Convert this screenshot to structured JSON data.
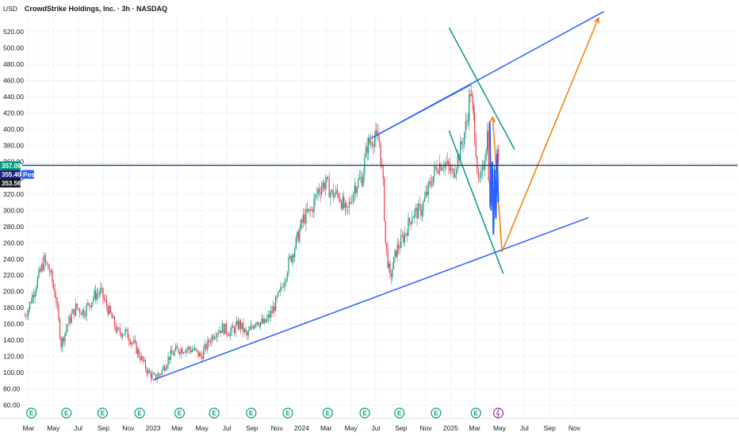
{
  "chart_data": {
    "type": "candlestick",
    "currency": "USD",
    "title": "CrowdStrike Holdings, Inc. · 3h · NASDAQ",
    "ylim": [
      55,
      550
    ],
    "y_ticks": [
      "520.00",
      "500.00",
      "480.00",
      "460.00",
      "440.00",
      "420.00",
      "400.00",
      "380.00",
      "360.00",
      "340.00",
      "320.00",
      "300.00",
      "280.00",
      "260.00",
      "240.00",
      "220.00",
      "200.00",
      "180.00",
      "160.00",
      "140.00",
      "120.00",
      "100.00",
      "80.00",
      "60.00"
    ],
    "x_ticks": [
      "Mar",
      "May",
      "Jul",
      "Sep",
      "Nov",
      "2023",
      "Mar",
      "May",
      "Jul",
      "Sep",
      "Nov",
      "2024",
      "Mar",
      "May",
      "Jul",
      "Sep",
      "Nov",
      "2025",
      "Mar",
      "May",
      "Jul",
      "Sep",
      "Nov"
    ],
    "price_badges": [
      {
        "label": "357.09",
        "value": 357.09,
        "color": "#089981"
      },
      {
        "label": "355.46",
        "value": 355.46,
        "color": "#1a237e"
      },
      {
        "label": "Post",
        "value": 355.46,
        "color": "#2962ff"
      },
      {
        "label": "353.56",
        "value": 353.56,
        "color": "#131722"
      }
    ],
    "price_path": [
      [
        "2022-02-20",
        170
      ],
      [
        "2022-03-01",
        180
      ],
      [
        "2022-03-20",
        210
      ],
      [
        "2022-04-08",
        238
      ],
      [
        "2022-04-22",
        225
      ],
      [
        "2022-05-08",
        190
      ],
      [
        "2022-05-20",
        135
      ],
      [
        "2022-06-05",
        160
      ],
      [
        "2022-06-25",
        180
      ],
      [
        "2022-07-15",
        175
      ],
      [
        "2022-08-10",
        195
      ],
      [
        "2022-08-25",
        200
      ],
      [
        "2022-09-15",
        175
      ],
      [
        "2022-10-05",
        150
      ],
      [
        "2022-10-25",
        150
      ],
      [
        "2022-11-15",
        135
      ],
      [
        "2022-11-30",
        120
      ],
      [
        "2022-12-20",
        100
      ],
      [
        "2023-01-05",
        93
      ],
      [
        "2023-01-20",
        100
      ],
      [
        "2023-02-10",
        120
      ],
      [
        "2023-03-01",
        128
      ],
      [
        "2023-03-20",
        130
      ],
      [
        "2023-04-10",
        128
      ],
      [
        "2023-04-28",
        120
      ],
      [
        "2023-05-15",
        135
      ],
      [
        "2023-06-01",
        150
      ],
      [
        "2023-06-20",
        155
      ],
      [
        "2023-07-10",
        150
      ],
      [
        "2023-08-01",
        160
      ],
      [
        "2023-08-20",
        145
      ],
      [
        "2023-09-10",
        165
      ],
      [
        "2023-10-01",
        160
      ],
      [
        "2023-10-20",
        175
      ],
      [
        "2023-11-10",
        200
      ],
      [
        "2023-11-30",
        235
      ],
      [
        "2023-12-15",
        255
      ],
      [
        "2024-01-05",
        290
      ],
      [
        "2024-01-25",
        300
      ],
      [
        "2024-02-10",
        325
      ],
      [
        "2024-02-28",
        335
      ],
      [
        "2024-03-15",
        320
      ],
      [
        "2024-04-01",
        320
      ],
      [
        "2024-04-20",
        295
      ],
      [
        "2024-05-10",
        330
      ],
      [
        "2024-05-28",
        340
      ],
      [
        "2024-06-10",
        380
      ],
      [
        "2024-06-25",
        390
      ],
      [
        "2024-07-10",
        385
      ],
      [
        "2024-07-19",
        330
      ],
      [
        "2024-07-25",
        260
      ],
      [
        "2024-08-05",
        215
      ],
      [
        "2024-08-20",
        250
      ],
      [
        "2024-09-10",
        270
      ],
      [
        "2024-09-28",
        295
      ],
      [
        "2024-10-20",
        300
      ],
      [
        "2024-11-10",
        330
      ],
      [
        "2024-11-28",
        355
      ],
      [
        "2024-12-15",
        360
      ],
      [
        "2025-01-05",
        345
      ],
      [
        "2025-01-25",
        375
      ],
      [
        "2025-02-10",
        410
      ],
      [
        "2025-02-18",
        448
      ],
      [
        "2025-03-01",
        400
      ],
      [
        "2025-03-10",
        330
      ],
      [
        "2025-03-20",
        345
      ],
      [
        "2025-04-01",
        395
      ],
      [
        "2025-04-07",
        300
      ],
      [
        "2025-04-15",
        350
      ],
      [
        "2025-04-25",
        375
      ],
      [
        "2025-05-01",
        355
      ]
    ],
    "annotations": [
      {
        "name": "upper-channel-line",
        "color": "#2962ff",
        "points": [
          [
            "2024-06-20",
            389
          ],
          [
            "2026-01-12",
            545
          ]
        ]
      },
      {
        "name": "lower-channel-line",
        "color": "#2962ff",
        "points": [
          [
            "2023-01-01",
            91
          ],
          [
            "2025-12-05",
            291
          ]
        ]
      },
      {
        "name": "upper-channel-short-line",
        "color": "#2962ff",
        "points": [
          [
            "2024-06-20",
            389
          ],
          [
            "2025-02-20",
            455
          ]
        ]
      },
      {
        "name": "green-trendline-upper",
        "color": "#089981",
        "points": [
          [
            "2024-12-28",
            525
          ],
          [
            "2025-06-07",
            375
          ]
        ]
      },
      {
        "name": "green-trendline-lower",
        "color": "#089981",
        "points": [
          [
            "2024-12-28",
            398
          ],
          [
            "2025-05-10",
            222
          ]
        ]
      },
      {
        "name": "projection-down",
        "color": "#f57c00",
        "points": [
          [
            "2025-04-14",
            415
          ],
          [
            "2025-05-07",
            249
          ]
        ]
      },
      {
        "name": "projection-up",
        "color": "#f57c00",
        "points": [
          [
            "2025-05-07",
            249
          ],
          [
            "2025-12-30",
            537
          ]
        ]
      }
    ],
    "earnings_markers": [
      "2022-03-08",
      "2022-06-02",
      "2022-08-30",
      "2022-11-29",
      "2023-03-07",
      "2023-05-31",
      "2023-08-30",
      "2023-11-28",
      "2024-03-05",
      "2024-06-04",
      "2024-08-28",
      "2024-11-26",
      "2025-03-04"
    ],
    "event_marker": "2025-04-28"
  }
}
